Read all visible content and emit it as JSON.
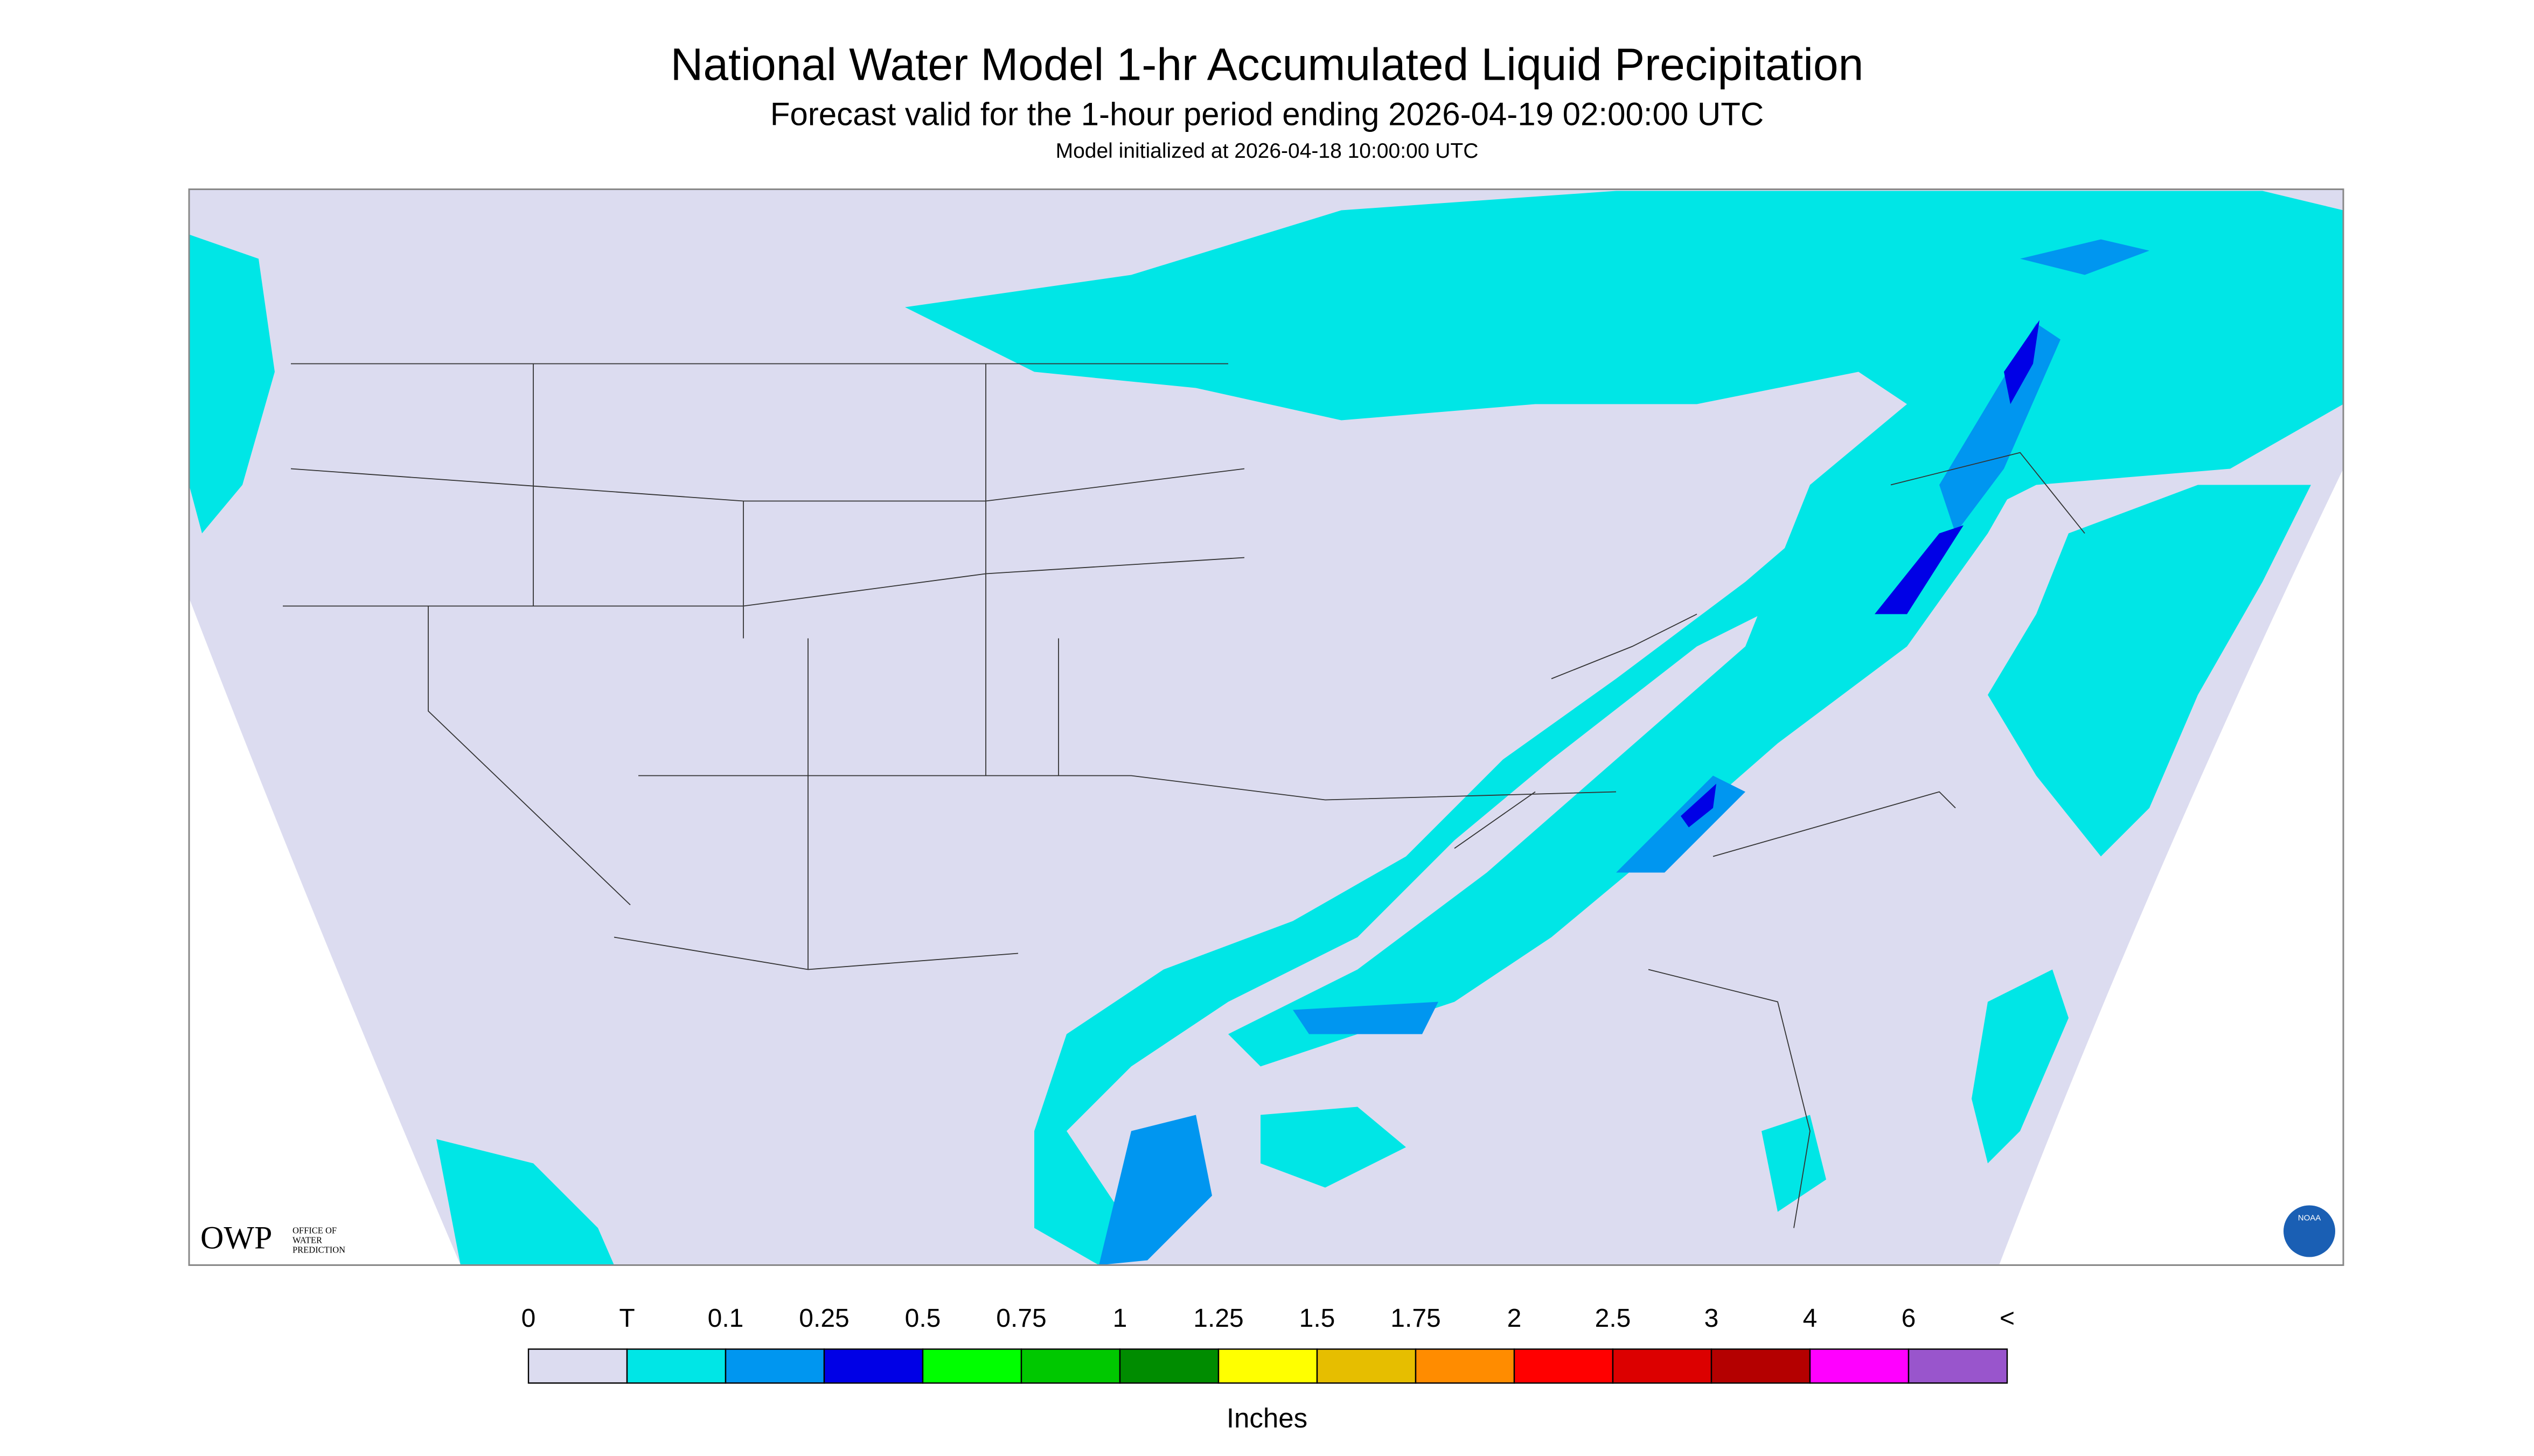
{
  "header": {
    "title": "National Water Model 1-hr Accumulated Liquid Precipitation",
    "subtitle": "Forecast valid for the 1-hour period ending 2026-04-19 02:00:00 UTC",
    "initialized": "Model initialized at 2026-04-18 10:00:00 UTC"
  },
  "logos": {
    "owp": "OWP",
    "owp_lines": [
      "OFFICE OF",
      "WATER",
      "PREDICTION"
    ],
    "noaa": "NOAA"
  },
  "legend": {
    "labels": [
      "0",
      "T",
      "0.1",
      "0.25",
      "0.5",
      "0.75",
      "1",
      "1.25",
      "1.5",
      "1.75",
      "2",
      "2.5",
      "3",
      "4",
      "6",
      "<"
    ],
    "colors": [
      "#dcdcf0",
      "#00e6e6",
      "#0096f0",
      "#0000e6",
      "#00ff00",
      "#00c800",
      "#008c00",
      "#ffff00",
      "#e6be00",
      "#ff8c00",
      "#ff0000",
      "#dc0000",
      "#b40000",
      "#ff00ff",
      "#9955cc"
    ],
    "unit": "Inches"
  }
}
